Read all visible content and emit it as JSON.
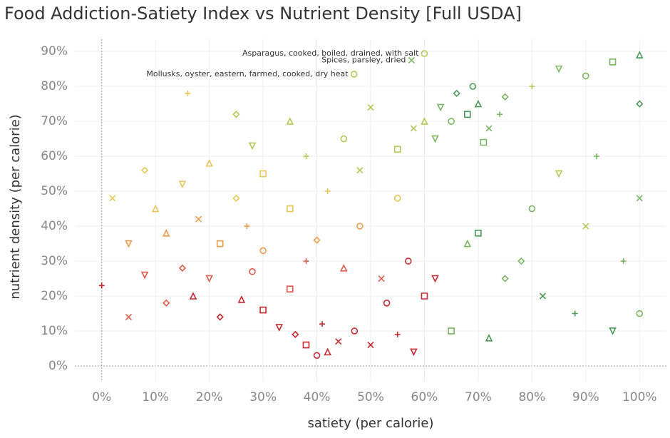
{
  "chart_data": {
    "type": "scatter",
    "title": "Food Addiction-Satiety Index vs Nutrient Density [Full USDA]",
    "x_label": "satiety (per calorie)",
    "y_label": "nutrient density (per calorie)",
    "xlim": [
      -5,
      105
    ],
    "ylim": [
      -4.5,
      93.5
    ],
    "xticks": [
      {
        "value": 0,
        "label": "0%"
      },
      {
        "value": 10,
        "label": "10%"
      },
      {
        "value": 20,
        "label": "20%"
      },
      {
        "value": 30,
        "label": "30%"
      },
      {
        "value": 40,
        "label": "40%"
      },
      {
        "value": 50,
        "label": "50%"
      },
      {
        "value": 60,
        "label": "60%"
      },
      {
        "value": 70,
        "label": "70%"
      },
      {
        "value": 80,
        "label": "80%"
      },
      {
        "value": 90,
        "label": "90%"
      },
      {
        "value": 100,
        "label": "100%"
      }
    ],
    "yticks": [
      {
        "value": 0,
        "label": "0%"
      },
      {
        "value": 10,
        "label": "10%"
      },
      {
        "value": 20,
        "label": "20%"
      },
      {
        "value": 30,
        "label": "30%"
      },
      {
        "value": 40,
        "label": "40%"
      },
      {
        "value": 50,
        "label": "50%"
      },
      {
        "value": 60,
        "label": "60%"
      },
      {
        "value": 70,
        "label": "70%"
      },
      {
        "value": 80,
        "label": "80%"
      },
      {
        "value": 90,
        "label": "90%"
      }
    ],
    "grid": true,
    "x": [
      40,
      38,
      42,
      36,
      44,
      41,
      33,
      47,
      30,
      26,
      22,
      50,
      55,
      58,
      53,
      60,
      17,
      12,
      5,
      0,
      20,
      28,
      35,
      45,
      15,
      52,
      38,
      8,
      30,
      22,
      12,
      40,
      18,
      27,
      5,
      48,
      35,
      10,
      25,
      2,
      42,
      15,
      55,
      30,
      20,
      8,
      48,
      38,
      28,
      45,
      55,
      35,
      25,
      50,
      16,
      62,
      65,
      68,
      70,
      66,
      72,
      74,
      63,
      69,
      71,
      60,
      75,
      58,
      80,
      85,
      90,
      95,
      100,
      100,
      100,
      92,
      85,
      80,
      70,
      68,
      75,
      82,
      88,
      95,
      100,
      65,
      72,
      78,
      90,
      97,
      62,
      57
    ],
    "values": [
      3,
      6,
      4,
      9,
      7,
      12,
      11,
      10,
      16,
      19,
      14,
      6,
      9,
      4,
      18,
      20,
      20,
      18,
      14,
      23,
      25,
      27,
      22,
      28,
      28,
      25,
      30,
      26,
      33,
      35,
      38,
      36,
      42,
      40,
      35,
      40,
      45,
      45,
      48,
      48,
      50,
      52,
      48,
      55,
      58,
      56,
      56,
      60,
      63,
      65,
      62,
      70,
      72,
      74,
      78,
      65,
      70,
      72,
      75,
      78,
      68,
      72,
      74,
      80,
      64,
      70,
      77,
      68,
      80,
      85,
      83,
      87,
      89,
      75,
      48,
      60,
      55,
      45,
      38,
      35,
      25,
      20,
      15,
      10,
      15,
      10,
      8,
      30,
      40,
      30,
      25,
      30
    ],
    "colors": [
      "#c62a2f",
      "#c62a2f",
      "#c62a2f",
      "#c62a2f",
      "#c62a2f",
      "#c62a2f",
      "#c62a2f",
      "#c62a2f",
      "#c62a2f",
      "#c62a2f",
      "#c62a2f",
      "#c62a2f",
      "#c62a2f",
      "#c62a2f",
      "#c62a2f",
      "#c62a2f",
      "#c62a2f",
      "#e05a4c",
      "#e05a4c",
      "#c62a2f",
      "#e05a4c",
      "#e05a4c",
      "#e05a4c",
      "#e05a4c",
      "#e05a4c",
      "#e05a4c",
      "#e05a4c",
      "#e05a4c",
      "#f09a4a",
      "#f09a4a",
      "#f09a4a",
      "#f09a4a",
      "#f09a4a",
      "#f09a4a",
      "#f09a4a",
      "#f09a4a",
      "#e9c65a",
      "#e9c65a",
      "#e9c65a",
      "#e9c65a",
      "#e9c65a",
      "#e9c65a",
      "#e9c65a",
      "#e9c65a",
      "#e9c65a",
      "#e9c65a",
      "#b5c756",
      "#b5c756",
      "#b5c756",
      "#b5c756",
      "#b5c756",
      "#b5c756",
      "#b5c756",
      "#b5c756",
      "#e9c65a",
      "#7ab562",
      "#7ab562",
      "#4a9a5a",
      "#4a9a5a",
      "#4a9a5a",
      "#7ab562",
      "#7ab562",
      "#7ab562",
      "#4a9a5a",
      "#7ab562",
      "#b5c756",
      "#7ab562",
      "#b5c756",
      "#b5c756",
      "#7ab562",
      "#7ab562",
      "#7ab562",
      "#4a9a5a",
      "#4a9a5a",
      "#7ab562",
      "#7ab562",
      "#b5c756",
      "#7ab562",
      "#4a9a5a",
      "#7ab562",
      "#7ab562",
      "#4a9a5a",
      "#4a9a5a",
      "#4a9a5a",
      "#7ab562",
      "#7ab562",
      "#4a9a5a",
      "#7ab562",
      "#b5c756",
      "#7ab562",
      "#c62a2f",
      "#c62a2f"
    ],
    "annotations": [
      {
        "text": "Asparagus, cooked, boiled, drained, with salt",
        "x": 60,
        "y": 89.4,
        "color": "#b5c756"
      },
      {
        "text": "Spices, parsley, dried",
        "x": 57.6,
        "y": 87.5,
        "color": "#7ab562"
      },
      {
        "text": "Mollusks, oyster, eastern, farmed, cooked, dry heat",
        "x": 46.9,
        "y": 83.5,
        "color": "#b5c756"
      }
    ]
  }
}
